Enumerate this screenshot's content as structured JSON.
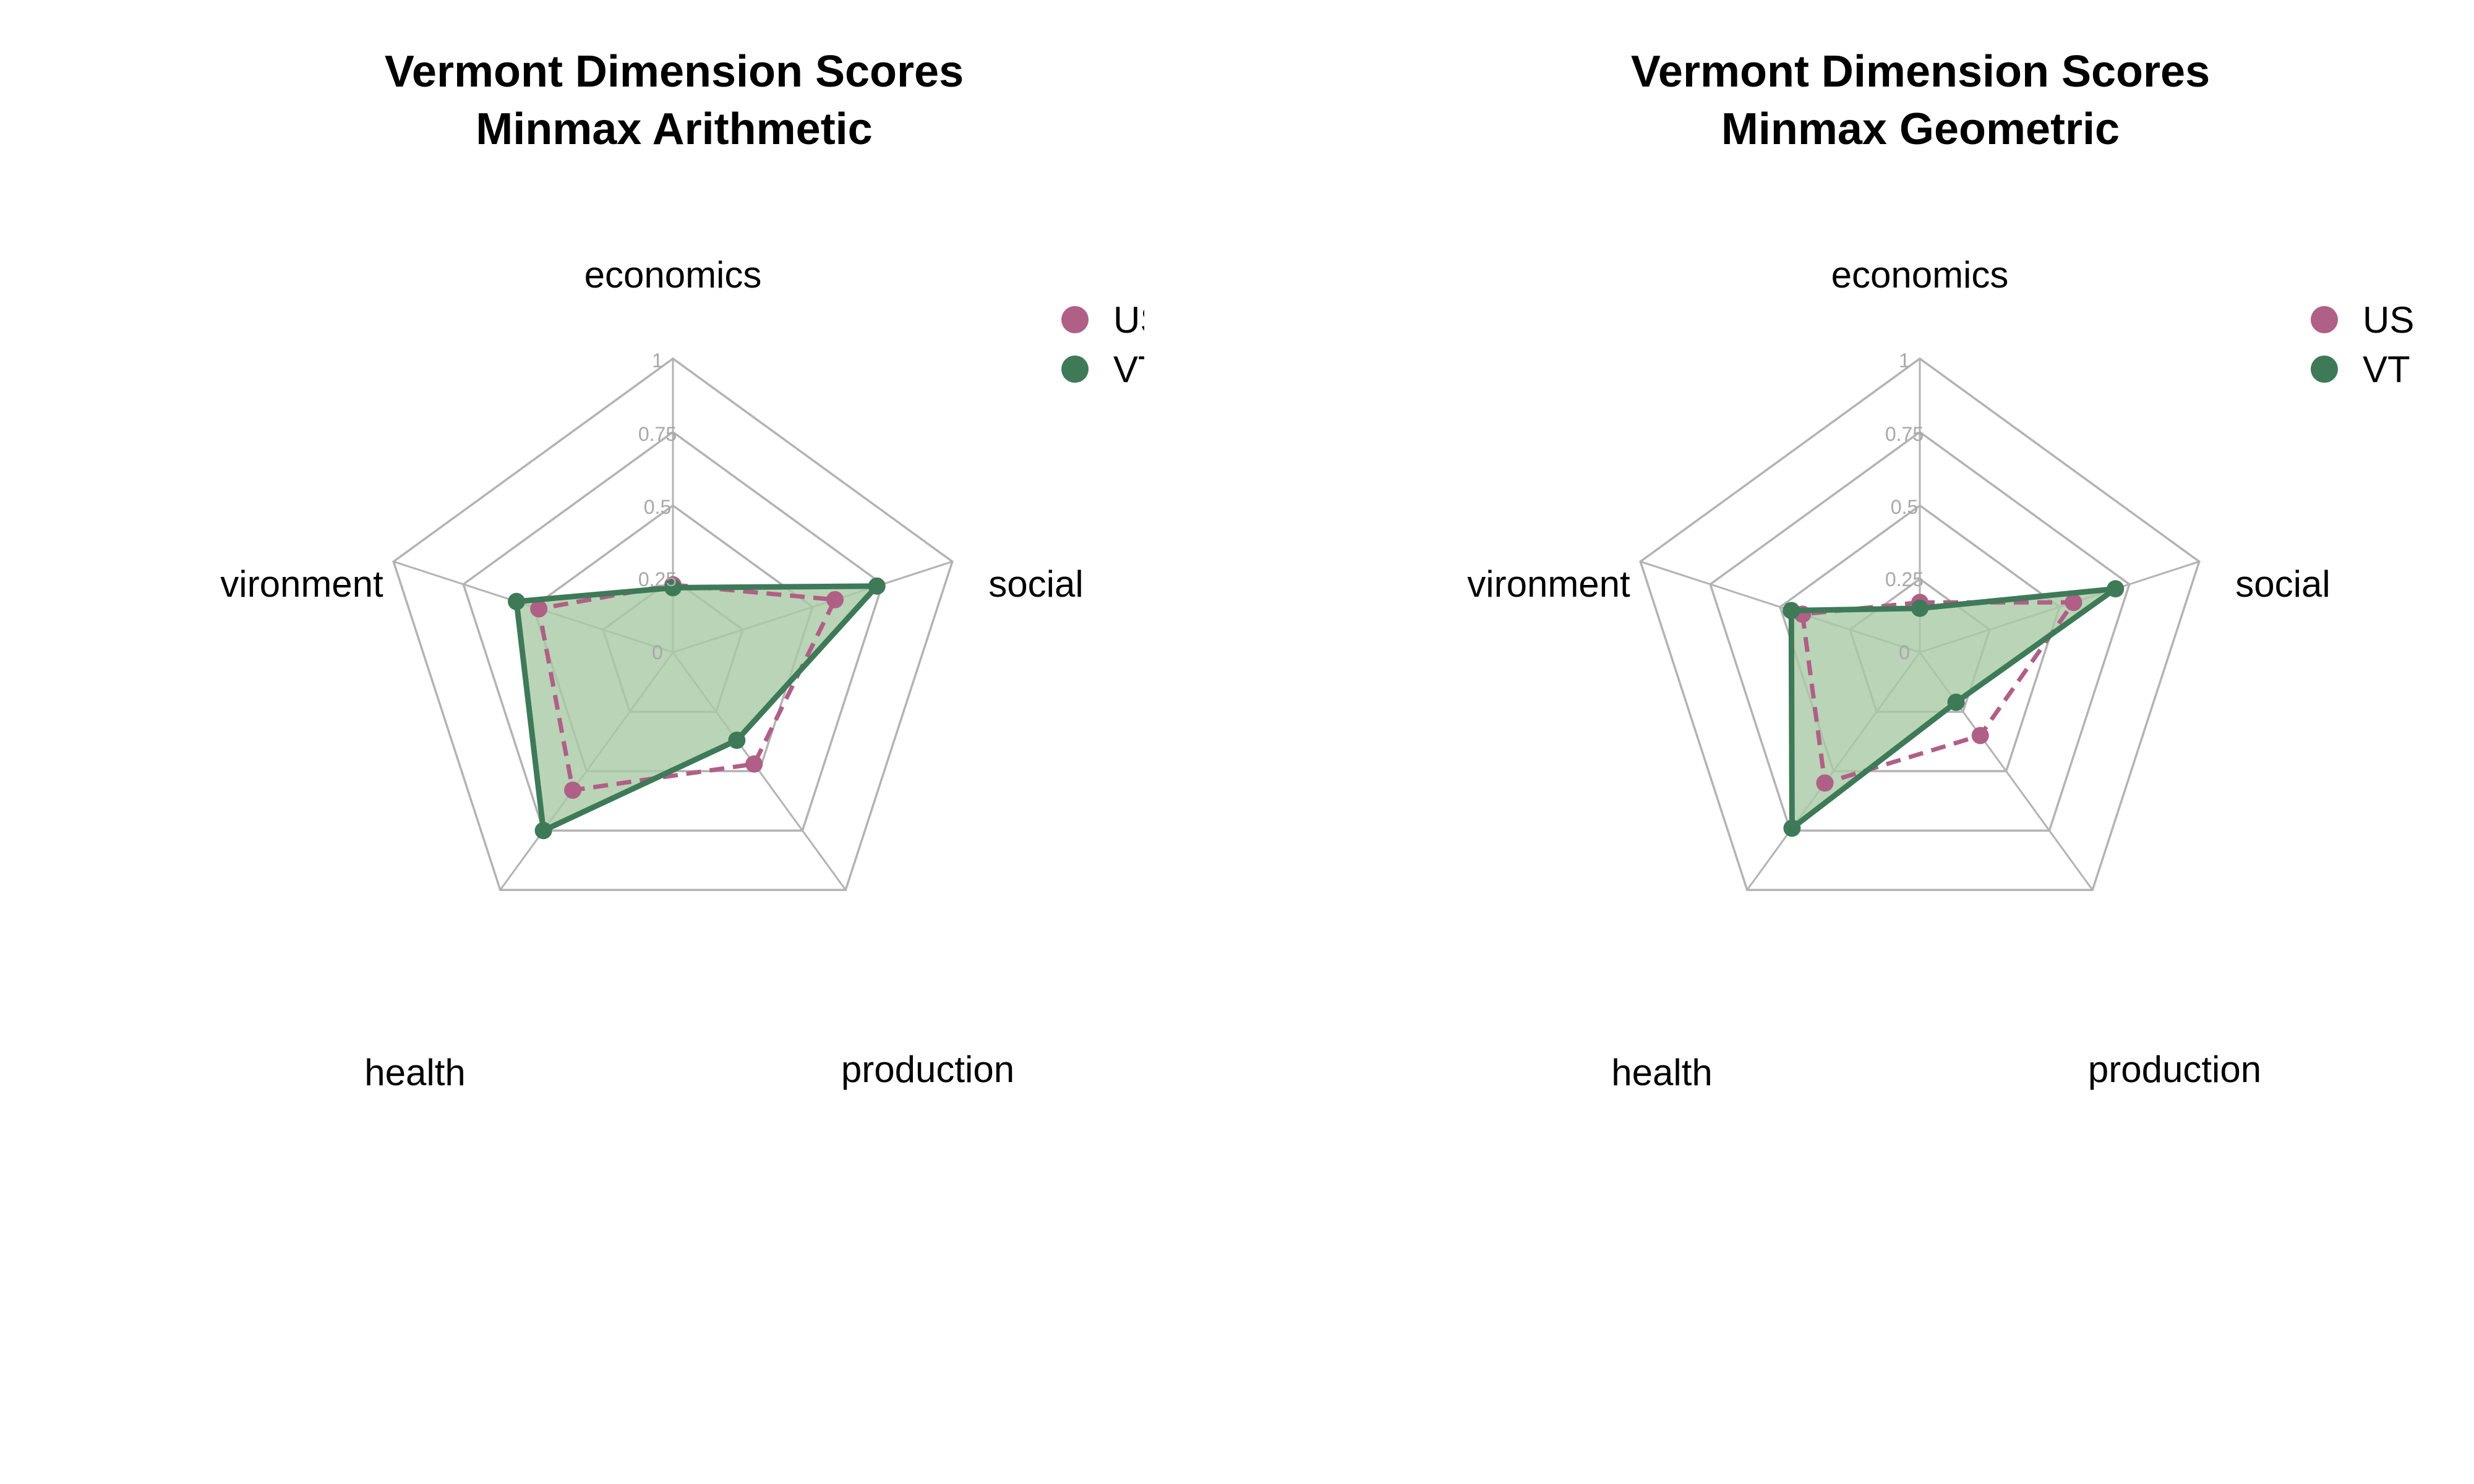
{
  "chart_data": [
    {
      "type": "radar",
      "title": "Vermont Dimension Scores",
      "subtitle": "Minmax Arithmetic",
      "axes": [
        "economics",
        "social",
        "production",
        "health",
        "environment"
      ],
      "axis_label_text": [
        "economics",
        "social",
        "production",
        "health",
        "vironment"
      ],
      "ticks": [
        "0",
        "0.25",
        "0.5",
        "0.75",
        "1"
      ],
      "ylim": [
        0,
        1
      ],
      "grid": true,
      "legend_position": "top-right",
      "legend_text": [
        "US",
        "VT"
      ],
      "series": [
        {
          "name": "US",
          "color": "#b05f87",
          "line": "dashed",
          "fill": false,
          "values": [
            0.23,
            0.58,
            0.47,
            0.58,
            0.48
          ]
        },
        {
          "name": "VT",
          "color": "#3e7a58",
          "line": "solid",
          "fill": true,
          "values": [
            0.22,
            0.73,
            0.37,
            0.75,
            0.56
          ]
        }
      ]
    },
    {
      "type": "radar",
      "title": "Vermont Dimension Scores",
      "subtitle": "Minmax Geometric",
      "axes": [
        "economics",
        "social",
        "production",
        "health",
        "environment"
      ],
      "axis_label_text": [
        "economics",
        "social",
        "production",
        "health",
        "vironment"
      ],
      "ticks": [
        "0",
        "0.25",
        "0.5",
        "0.75",
        "1"
      ],
      "ylim": [
        0,
        1
      ],
      "grid": true,
      "legend_position": "top-right",
      "legend_text": [
        "US",
        "VT"
      ],
      "series": [
        {
          "name": "US",
          "color": "#b05f87",
          "line": "dashed",
          "fill": false,
          "values": [
            0.17,
            0.55,
            0.35,
            0.55,
            0.42
          ]
        },
        {
          "name": "VT",
          "color": "#3e7a58",
          "line": "solid",
          "fill": true,
          "values": [
            0.15,
            0.7,
            0.21,
            0.74,
            0.46
          ]
        }
      ]
    }
  ],
  "styles": {
    "fill_color": "#a7c9a4",
    "grid_color": "#b3b3b3",
    "tick_color": "#a8a8a8"
  }
}
